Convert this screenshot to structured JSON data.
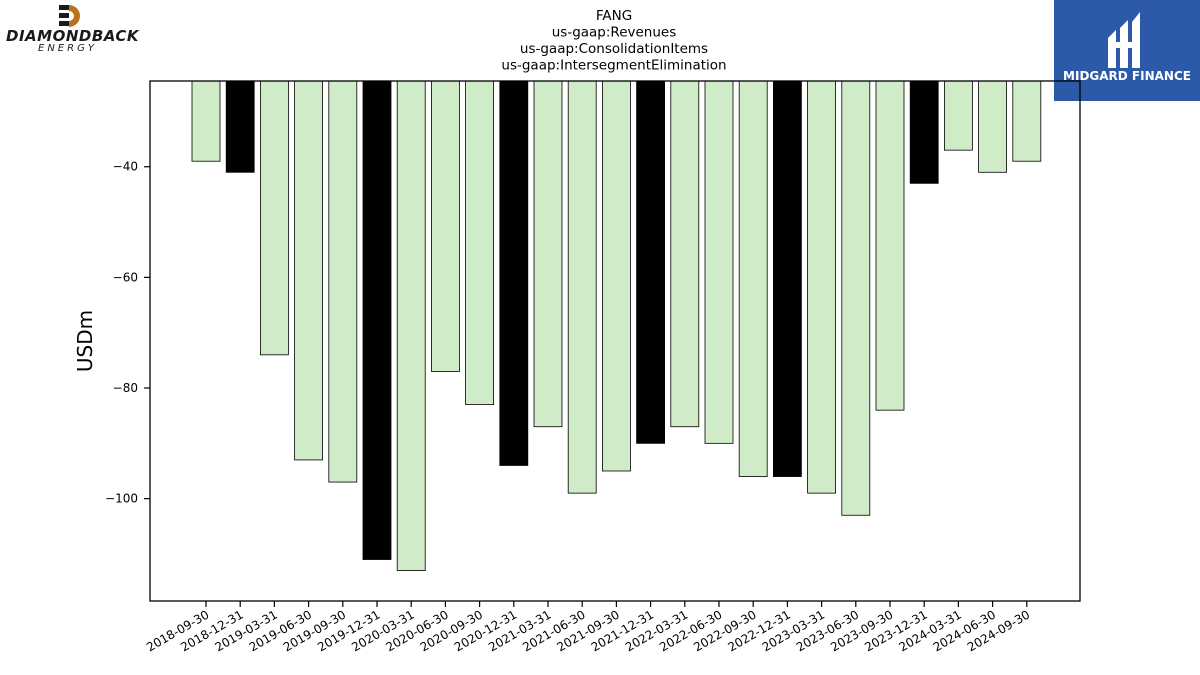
{
  "logos": {
    "left_brand": "DIAMONDBACK",
    "left_sub": "ENERGY",
    "right_brand": "MIDGARD FINANCE"
  },
  "colors": {
    "bar_light": "#d0ebc8",
    "bar_dark": "#000000",
    "logo_bg": "#2d5aa8"
  },
  "chart_data": {
    "type": "bar",
    "title": [
      "FANG",
      "us-gaap:Revenues",
      "us-gaap:ConsolidationItems",
      "us-gaap:IntersegmentElimination"
    ],
    "ylabel": "USDm",
    "xlabel": "",
    "ylim": [
      -118.5,
      -24.5
    ],
    "yticks": [
      -40,
      -60,
      -80,
      -100
    ],
    "grid": false,
    "categories": [
      "2018-09-30",
      "2018-12-31",
      "2019-03-31",
      "2019-06-30",
      "2019-09-30",
      "2019-12-31",
      "2020-03-31",
      "2020-06-30",
      "2020-09-30",
      "2020-12-31",
      "2021-03-31",
      "2021-06-30",
      "2021-09-30",
      "2021-12-31",
      "2022-03-31",
      "2022-06-30",
      "2022-09-30",
      "2022-12-31",
      "2023-03-31",
      "2023-06-30",
      "2023-09-30",
      "2023-12-31",
      "2024-03-31",
      "2024-06-30",
      "2024-09-30"
    ],
    "values": [
      -39,
      -41,
      -74,
      -93,
      -97,
      -111,
      -113,
      -77,
      -83,
      -94,
      -87,
      -99,
      -95,
      -90,
      -87,
      -90,
      -96,
      -96,
      -99,
      -103,
      -84,
      -43,
      -37,
      -41,
      -39
    ],
    "highlight": [
      false,
      true,
      false,
      false,
      false,
      true,
      false,
      false,
      false,
      true,
      false,
      false,
      false,
      true,
      false,
      false,
      false,
      true,
      false,
      false,
      false,
      true,
      false,
      false,
      false
    ]
  }
}
